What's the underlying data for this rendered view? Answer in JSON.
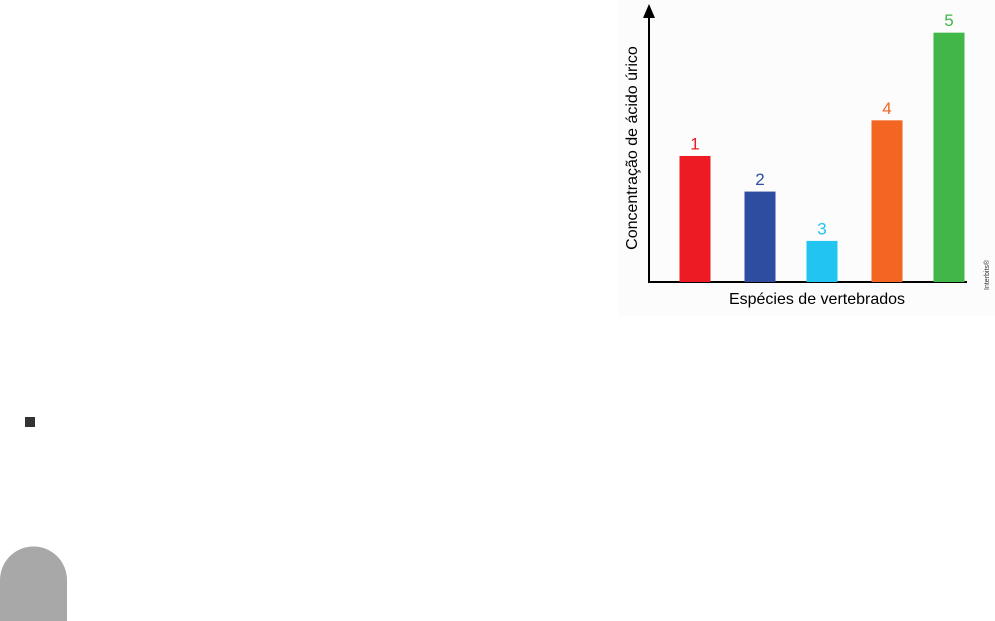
{
  "chart_data": {
    "type": "bar",
    "categories": [
      "1",
      "2",
      "3",
      "4",
      "5"
    ],
    "values": [
      46,
      33,
      15,
      59,
      91
    ],
    "colors": [
      "#ed1c24",
      "#2e4da0",
      "#22c4f0",
      "#f26522",
      "#41b649"
    ],
    "ylim": [
      0,
      100
    ],
    "x_label": "Espécies de vertebrados",
    "y_label": "Concentração de ácido úrico",
    "credit": "Interbits®"
  }
}
